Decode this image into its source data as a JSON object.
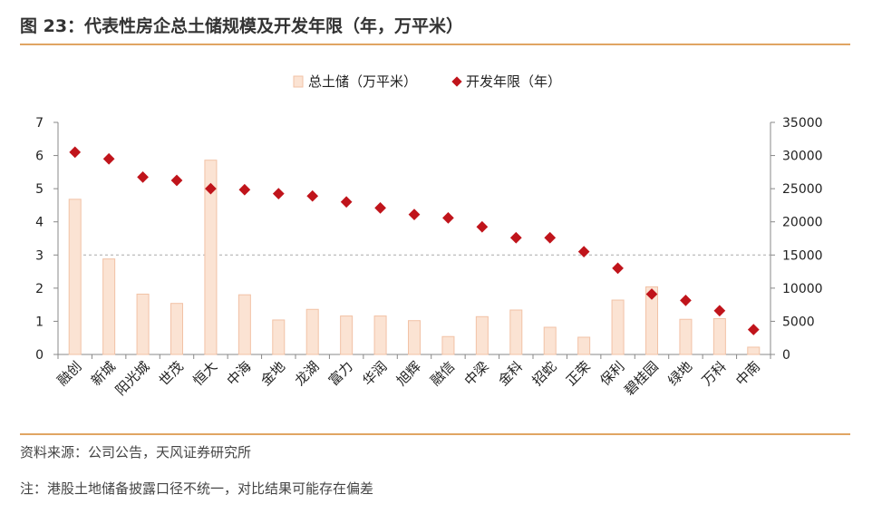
{
  "header": {
    "title": "图 23：代表性房企总土储规模及开发年限（年，万平米）"
  },
  "footer": {
    "source": "资料来源：公司公告，天风证券研究所",
    "note": "注：港股土地储备披露口径不统一，对比结果可能存在偏差"
  },
  "colors": {
    "bar_fill": "#FBE3D3",
    "bar_stroke": "#F2C2A6",
    "marker": "#C0141B",
    "rule": "#E0A563",
    "axis": "#888888",
    "refline": "#AAAAAA"
  },
  "chart_data": {
    "type": "bar",
    "categories": [
      "融创",
      "新城",
      "阳光城",
      "世茂",
      "恒大",
      "中海",
      "金地",
      "龙湖",
      "富力",
      "华润",
      "旭辉",
      "融信",
      "中梁",
      "金科",
      "招蛇",
      "正荣",
      "保利",
      "碧桂园",
      "绿地",
      "万科",
      "中南"
    ],
    "series": [
      {
        "name": "总土储（万平米）",
        "type": "bar",
        "axis": "right",
        "values": [
          23400,
          14400,
          9100,
          7700,
          29300,
          9000,
          5200,
          6800,
          5800,
          5800,
          5100,
          2700,
          5700,
          6700,
          4100,
          2600,
          8200,
          10200,
          5300,
          5400,
          1100
        ]
      },
      {
        "name": "开发年限（年）",
        "type": "scatter",
        "axis": "left",
        "values": [
          6.1,
          5.9,
          5.35,
          5.25,
          5.0,
          4.97,
          4.85,
          4.78,
          4.6,
          4.42,
          4.22,
          4.12,
          3.85,
          3.52,
          3.52,
          3.1,
          2.6,
          1.82,
          1.63,
          1.32,
          0.75
        ]
      }
    ],
    "y_left": {
      "lim": [
        0,
        7
      ],
      "ticks": [
        0,
        1,
        2,
        3,
        4,
        5,
        6,
        7
      ]
    },
    "y_right": {
      "lim": [
        0,
        35000
      ],
      "ticks": [
        0,
        5000,
        10000,
        15000,
        20000,
        25000,
        30000,
        35000
      ]
    },
    "reference_line": {
      "axis": "left",
      "value": 3,
      "style": "dashed"
    },
    "legend_position": "top-center",
    "grid": false
  }
}
